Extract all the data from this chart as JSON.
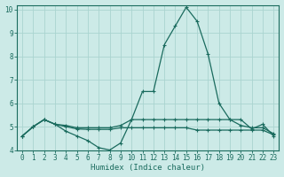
{
  "xlabel": "Humidex (Indice chaleur)",
  "ylabel": "",
  "xlim": [
    -0.5,
    23.5
  ],
  "ylim": [
    4,
    10.2
  ],
  "yticks": [
    4,
    5,
    6,
    7,
    8,
    9,
    10
  ],
  "xticks": [
    0,
    1,
    2,
    3,
    4,
    5,
    6,
    7,
    8,
    9,
    10,
    11,
    12,
    13,
    14,
    15,
    16,
    17,
    18,
    19,
    20,
    21,
    22,
    23
  ],
  "background_color": "#cceae7",
  "grid_color": "#aad4d0",
  "line_color": "#1a6b5e",
  "line1_x": [
    0,
    1,
    2,
    3,
    4,
    5,
    6,
    7,
    8,
    9,
    10,
    11,
    12,
    13,
    14,
    15,
    16,
    17,
    18,
    19,
    20,
    21,
    22,
    23
  ],
  "line1_y": [
    4.6,
    5.0,
    5.3,
    5.1,
    4.8,
    4.6,
    4.4,
    4.1,
    4.0,
    4.3,
    5.3,
    6.5,
    6.5,
    8.5,
    9.3,
    10.1,
    9.5,
    8.1,
    6.0,
    5.3,
    5.3,
    4.9,
    5.1,
    4.6
  ],
  "line2_x": [
    0,
    1,
    2,
    3,
    4,
    5,
    6,
    7,
    8,
    9,
    10,
    11,
    12,
    13,
    14,
    15,
    16,
    17,
    18,
    19,
    20,
    21,
    22,
    23
  ],
  "line2_y": [
    4.6,
    5.0,
    5.3,
    5.1,
    5.05,
    4.95,
    4.95,
    4.95,
    4.95,
    5.05,
    5.3,
    5.3,
    5.3,
    5.3,
    5.3,
    5.3,
    5.3,
    5.3,
    5.3,
    5.3,
    5.05,
    4.95,
    4.95,
    4.7
  ],
  "line3_x": [
    0,
    1,
    2,
    3,
    4,
    5,
    6,
    7,
    8,
    9,
    10,
    11,
    12,
    13,
    14,
    15,
    16,
    17,
    18,
    19,
    20,
    21,
    22,
    23
  ],
  "line3_y": [
    4.6,
    5.0,
    5.3,
    5.1,
    5.0,
    4.9,
    4.88,
    4.88,
    4.88,
    4.95,
    4.95,
    4.95,
    4.95,
    4.95,
    4.95,
    4.95,
    4.85,
    4.85,
    4.85,
    4.85,
    4.85,
    4.85,
    4.85,
    4.65
  ]
}
